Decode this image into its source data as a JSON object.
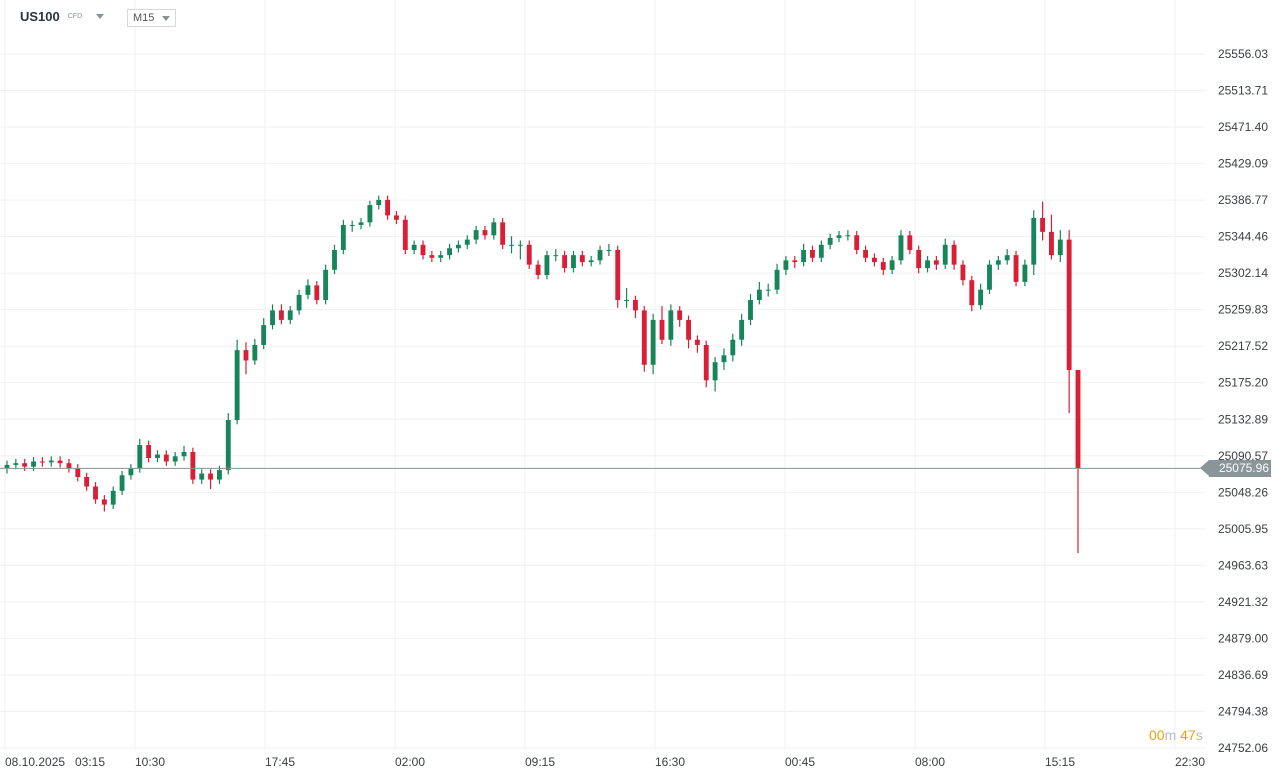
{
  "header": {
    "symbol": "US100",
    "instrument_type": "CFD",
    "timeframe": "M15"
  },
  "current_price": "25075.96",
  "countdown": {
    "minutes": "00",
    "minutes_unit": "m",
    "seconds": "47",
    "seconds_unit": "s"
  },
  "colors": {
    "up": "#16865a",
    "down": "#d81f35",
    "price_line": "#8a9597",
    "grid": "#f0f0f0",
    "countdown": "#f39c12"
  },
  "chart_data": {
    "type": "candlestick",
    "title": "",
    "ylim": [
      24752.06,
      25556.03
    ],
    "grid": true,
    "y_ticks": [
      "25556.03",
      "25513.71",
      "25471.40",
      "25429.09",
      "25386.77",
      "25344.46",
      "25302.14",
      "25259.83",
      "25217.52",
      "25175.20",
      "25132.89",
      "25090.57",
      "25048.26",
      "25005.95",
      "24963.63",
      "24921.32",
      "24879.00",
      "24836.69",
      "24794.38",
      "24752.06"
    ],
    "x_ticks": [
      "08.10.2025",
      "03:15",
      "10:30",
      "17:45",
      "02:00",
      "09:15",
      "16:30",
      "00:45",
      "08:00",
      "15:15",
      "22:30"
    ],
    "ohlc_columns": [
      "open",
      "high",
      "low",
      "close"
    ],
    "ohlc": [
      [
        25076,
        25085,
        25070,
        25080
      ],
      [
        25080,
        25087,
        25075,
        25082
      ],
      [
        25082,
        25087,
        25073,
        25078
      ],
      [
        25078,
        25089,
        25073,
        25084
      ],
      [
        25084,
        25089,
        25078,
        25083
      ],
      [
        25083,
        25090,
        25078,
        25085
      ],
      [
        25085,
        25090,
        25077,
        25082
      ],
      [
        25082,
        25087,
        25071,
        25076
      ],
      [
        25076,
        25081,
        25061,
        25066
      ],
      [
        25066,
        25071,
        25050,
        25055
      ],
      [
        25055,
        25060,
        25035,
        25040
      ],
      [
        25040,
        25045,
        25026,
        25034
      ],
      [
        25034,
        25055,
        25029,
        25050
      ],
      [
        25050,
        25073,
        25045,
        25068
      ],
      [
        25068,
        25081,
        25063,
        25076
      ],
      [
        25076,
        25110,
        25071,
        25103
      ],
      [
        25103,
        25108,
        25083,
        25088
      ],
      [
        25088,
        25097,
        25083,
        25092
      ],
      [
        25092,
        25097,
        25079,
        25084
      ],
      [
        25084,
        25095,
        25079,
        25090
      ],
      [
        25090,
        25102,
        25085,
        25095
      ],
      [
        25095,
        25100,
        25058,
        25063
      ],
      [
        25063,
        25075,
        25058,
        25070
      ],
      [
        25070,
        25075,
        25052,
        25063
      ],
      [
        25063,
        25079,
        25058,
        25074
      ],
      [
        25074,
        25140,
        25069,
        25132
      ],
      [
        25132,
        25225,
        25127,
        25213
      ],
      [
        25213,
        25222,
        25185,
        25201
      ],
      [
        25201,
        25226,
        25196,
        25219
      ],
      [
        25219,
        25250,
        25214,
        25242
      ],
      [
        25242,
        25266,
        25237,
        25259
      ],
      [
        25259,
        25266,
        25243,
        25248
      ],
      [
        25248,
        25264,
        25243,
        25259
      ],
      [
        25259,
        25283,
        25254,
        25277
      ],
      [
        25277,
        25295,
        25272,
        25288
      ],
      [
        25288,
        25293,
        25266,
        25271
      ],
      [
        25271,
        25312,
        25266,
        25306
      ],
      [
        25306,
        25335,
        25301,
        25329
      ],
      [
        25329,
        25364,
        25324,
        25358
      ],
      [
        25358,
        25363,
        25350,
        25358
      ],
      [
        25358,
        25366,
        25353,
        25361
      ],
      [
        25361,
        25386,
        25356,
        25381
      ],
      [
        25381,
        25392,
        25376,
        25387
      ],
      [
        25387,
        25392,
        25364,
        25369
      ],
      [
        25369,
        25374,
        25359,
        25364
      ],
      [
        25364,
        25369,
        25324,
        25329
      ],
      [
        25329,
        25340,
        25324,
        25335
      ],
      [
        25335,
        25340,
        25318,
        25323
      ],
      [
        25323,
        25328,
        25315,
        25320
      ],
      [
        25320,
        25328,
        25315,
        25323
      ],
      [
        25323,
        25336,
        25318,
        25331
      ],
      [
        25331,
        25340,
        25326,
        25335
      ],
      [
        25335,
        25346,
        25330,
        25341
      ],
      [
        25341,
        25357,
        25336,
        25352
      ],
      [
        25352,
        25357,
        25341,
        25346
      ],
      [
        25346,
        25366,
        25341,
        25361
      ],
      [
        25361,
        25366,
        25330,
        25335
      ],
      [
        25335,
        25345,
        25325,
        25335
      ],
      [
        25335,
        25340,
        25318,
        25335
      ],
      [
        25335,
        25340,
        25307,
        25312
      ],
      [
        25312,
        25317,
        25295,
        25300
      ],
      [
        25300,
        25328,
        25295,
        25323
      ],
      [
        25323,
        25330,
        25316,
        25323
      ],
      [
        25323,
        25328,
        25303,
        25308
      ],
      [
        25308,
        25328,
        25303,
        25323
      ],
      [
        25323,
        25328,
        25310,
        25315
      ],
      [
        25315,
        25322,
        25310,
        25317
      ],
      [
        25317,
        25334,
        25312,
        25329
      ],
      [
        25329,
        25336,
        25322,
        25329
      ],
      [
        25329,
        25334,
        25262,
        25271
      ],
      [
        25271,
        25285,
        25262,
        25271
      ],
      [
        25271,
        25276,
        25250,
        25259
      ],
      [
        25259,
        25264,
        25188,
        25196
      ],
      [
        25196,
        25255,
        25185,
        25248
      ],
      [
        25248,
        25264,
        25220,
        25225
      ],
      [
        25225,
        25266,
        25218,
        25259
      ],
      [
        25259,
        25264,
        25240,
        25248
      ],
      [
        25248,
        25253,
        25215,
        25225
      ],
      [
        25225,
        25230,
        25210,
        25219
      ],
      [
        25219,
        25224,
        25170,
        25178
      ],
      [
        25178,
        25205,
        25165,
        25199
      ],
      [
        25199,
        25215,
        25190,
        25207
      ],
      [
        25207,
        25232,
        25200,
        25225
      ],
      [
        25225,
        25255,
        25218,
        25248
      ],
      [
        25248,
        25278,
        25242,
        25271
      ],
      [
        25271,
        25292,
        25266,
        25283
      ],
      [
        25283,
        25290,
        25275,
        25283
      ],
      [
        25283,
        25313,
        25278,
        25306
      ],
      [
        25306,
        25322,
        25300,
        25317
      ],
      [
        25317,
        25322,
        25308,
        25315
      ],
      [
        25315,
        25336,
        25310,
        25329
      ],
      [
        25329,
        25334,
        25315,
        25320
      ],
      [
        25320,
        25340,
        25315,
        25335
      ],
      [
        25335,
        25348,
        25330,
        25343
      ],
      [
        25343,
        25351,
        25338,
        25346
      ],
      [
        25346,
        25352,
        25340,
        25346
      ],
      [
        25346,
        25351,
        25324,
        25329
      ],
      [
        25329,
        25334,
        25315,
        25320
      ],
      [
        25320,
        25325,
        25310,
        25315
      ],
      [
        25315,
        25320,
        25300,
        25306
      ],
      [
        25306,
        25322,
        25301,
        25317
      ],
      [
        25317,
        25352,
        25312,
        25346
      ],
      [
        25346,
        25351,
        25324,
        25329
      ],
      [
        25329,
        25334,
        25302,
        25308
      ],
      [
        25308,
        25322,
        25303,
        25317
      ],
      [
        25317,
        25322,
        25306,
        25312
      ],
      [
        25312,
        25342,
        25307,
        25335
      ],
      [
        25335,
        25340,
        25306,
        25312
      ],
      [
        25312,
        25317,
        25288,
        25294
      ],
      [
        25294,
        25299,
        25258,
        25265
      ],
      [
        25265,
        25290,
        25260,
        25283
      ],
      [
        25283,
        25317,
        25278,
        25312
      ],
      [
        25312,
        25322,
        25306,
        25317
      ],
      [
        25317,
        25330,
        25312,
        25323
      ],
      [
        25323,
        25328,
        25287,
        25292
      ],
      [
        25292,
        25318,
        25287,
        25312
      ],
      [
        25312,
        25375,
        25300,
        25366
      ],
      [
        25366,
        25385,
        25340,
        25350
      ],
      [
        25350,
        25370,
        25318,
        25323
      ],
      [
        25323,
        25352,
        25315,
        25341
      ],
      [
        25341,
        25352,
        25140,
        25190
      ],
      [
        25190,
        25190,
        24978,
        25075.96
      ]
    ]
  }
}
